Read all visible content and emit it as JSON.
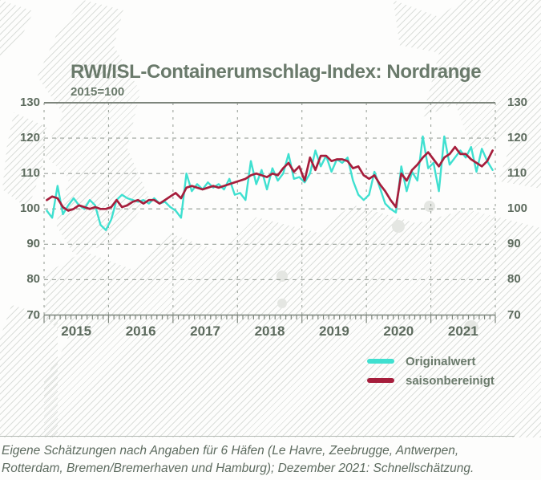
{
  "title": "RWI/ISL-Containerumschlag-Index: Nordrange",
  "subtitle": "2015=100",
  "caption": {
    "line1": "Eigene Schätzungen nach Angaben für 6 Häfen (Le Havre, Zeebrugge, Antwerpen,",
    "line2": "Rotterdam, Bremen/Bremerhaven und Hamburg); Dezember 2021: Schnellschätzung."
  },
  "legend": {
    "items": [
      {
        "label": "Originalwert",
        "color": "#3FE0D0"
      },
      {
        "label": "saisonbereinigt",
        "color": "#A61E3C"
      }
    ]
  },
  "colors": {
    "original_line": "#3FE0D0",
    "seasonal_line": "#A61E3C",
    "heading_text": "#6A7A6B",
    "tick_text": "#5D6B5E",
    "axis_line": "#7D857C",
    "grid_line": "#9BA29B"
  },
  "chart_data": {
    "type": "line",
    "title": "RWI/ISL-Containerumschlag-Index: Nordrange",
    "subtitle": "2015=100",
    "x_unit": "month",
    "x_start": "2015-01",
    "x_end": "2021-12",
    "year_labels": [
      "2015",
      "2016",
      "2017",
      "2018",
      "2019",
      "2020",
      "2021"
    ],
    "ylim": [
      70,
      130
    ],
    "yticks": [
      70,
      80,
      90,
      100,
      110,
      120,
      130
    ],
    "grid": "dashed",
    "legend_position": "bottom-right",
    "series": [
      {
        "name": "Originalwert",
        "color": "#3FE0D0",
        "values": [
          99.5,
          97.5,
          106.5,
          98.5,
          101,
          103,
          101,
          100,
          102.5,
          101,
          95.5,
          94,
          97,
          102.5,
          104,
          103,
          102.5,
          102,
          102.5,
          101.5,
          103,
          101.5,
          102,
          100.5,
          99.5,
          97.5,
          110,
          105,
          107,
          105.5,
          107.5,
          106,
          107,
          105.5,
          108.5,
          104,
          104.5,
          102.5,
          113.5,
          107,
          111,
          105.5,
          111.5,
          108,
          110,
          115.5,
          108.5,
          109,
          107.5,
          110,
          116.5,
          112,
          115,
          110.5,
          114,
          113,
          114.5,
          108,
          104,
          102.5,
          104,
          110.5,
          106,
          101.5,
          100,
          99,
          112,
          105,
          110.5,
          108,
          120.5,
          111.5,
          113,
          105,
          120.5,
          112.5,
          114.5,
          116.5,
          114.5,
          117.5,
          110.5,
          117,
          113.5,
          111
        ]
      },
      {
        "name": "saisonbereinigt",
        "color": "#A61E3C",
        "values": [
          102.5,
          103.5,
          103,
          100.5,
          99.5,
          100,
          101,
          100.5,
          100,
          100.5,
          100,
          100,
          100.5,
          102.5,
          100.5,
          101,
          102,
          102.5,
          101.5,
          102.5,
          102.5,
          101.5,
          102.5,
          103.5,
          104.5,
          103,
          106,
          106.5,
          106,
          105.5,
          106,
          106.5,
          106,
          106.5,
          107,
          107.5,
          108,
          108.5,
          109.5,
          110,
          109.5,
          109,
          110,
          109.5,
          111.5,
          113,
          110.5,
          112,
          108,
          114.5,
          111,
          115,
          115,
          113.5,
          114,
          114,
          113.5,
          111.5,
          112,
          109.5,
          108.5,
          109.5,
          107,
          105,
          102.5,
          100.5,
          110,
          108,
          111,
          112.5,
          114.5,
          116,
          114,
          112,
          114.5,
          115.5,
          117.5,
          115.5,
          115.5,
          114,
          113,
          112,
          113.5,
          116.5
        ]
      }
    ]
  }
}
